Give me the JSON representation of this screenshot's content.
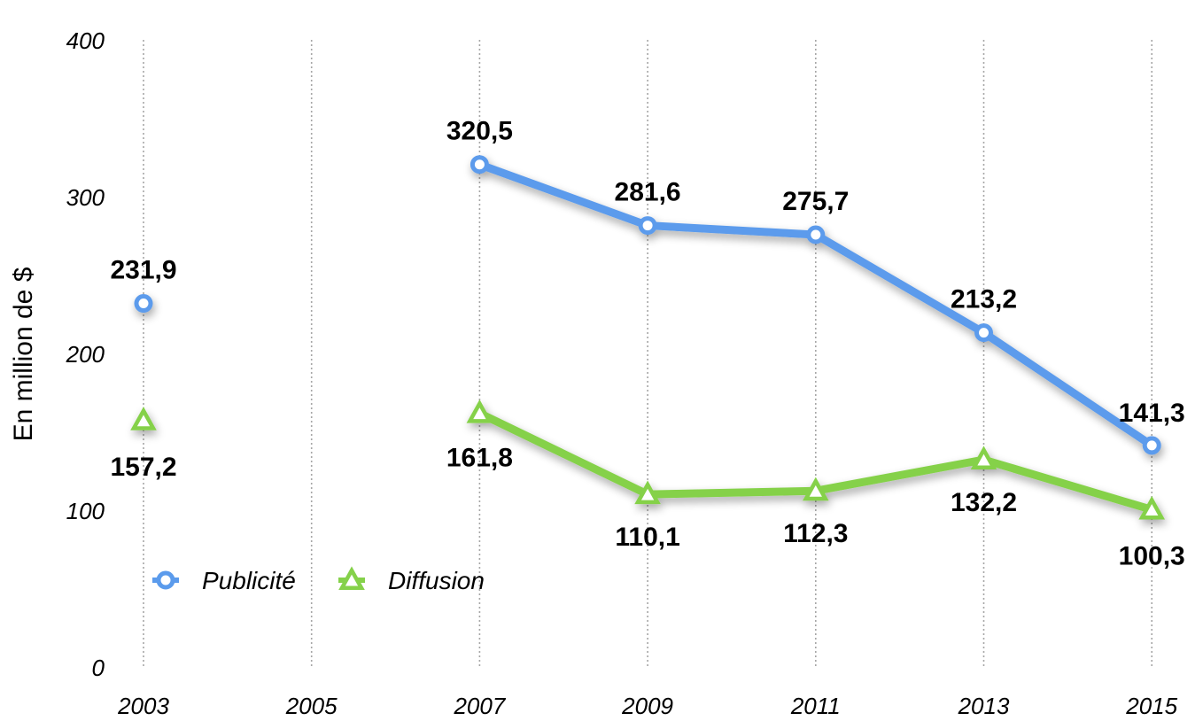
{
  "chart_data": {
    "type": "line",
    "title": "",
    "xlabel": "",
    "ylabel": "En million de $",
    "ylim": [
      0,
      400
    ],
    "yticks": [
      "0",
      "100",
      "200",
      "300",
      "400"
    ],
    "categories": [
      "2003",
      "2005",
      "2007",
      "2009",
      "2011",
      "2013",
      "2015"
    ],
    "grid": "vertical dotted",
    "legend_position": "lower-left",
    "series": [
      {
        "name": "Publicité",
        "color": "#5b9bec",
        "marker": "circle",
        "values": [
          231.9,
          null,
          320.5,
          281.6,
          275.7,
          213.2,
          141.3
        ],
        "labels": [
          "231,9",
          "",
          "320,5",
          "281,6",
          "275,7",
          "213,2",
          "141,3"
        ]
      },
      {
        "name": "Diffusion",
        "color": "#85d14a",
        "marker": "triangle",
        "values": [
          157.2,
          null,
          161.8,
          110.1,
          112.3,
          132.2,
          100.3
        ],
        "labels": [
          "157,2",
          "",
          "161,8",
          "110,1",
          "112,3",
          "132,2",
          "100,3"
        ]
      }
    ]
  }
}
